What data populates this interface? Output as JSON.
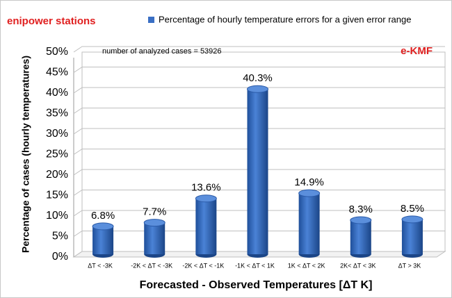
{
  "chart_data": {
    "type": "bar",
    "title": "enipower stations",
    "annotations": [
      "number of analyzed cases = 53926",
      "e-KMF"
    ],
    "ylabel": "Percentage of cases (hourly temperatures)",
    "xlabel": "Forecasted - Observed Temperatures [ΔT K]",
    "categories": [
      "ΔT < -3K",
      "-2K < ΔT < -3K",
      "-2K < ΔT < -1K",
      "-1K < ΔT < 1K",
      "1K < ΔT < 2K",
      "2K< ΔT < 3K",
      "ΔT > 3K"
    ],
    "series": [
      {
        "name": "Percentage of hourly temperature errors for a given error range",
        "color": "#3a6fc4",
        "values": [
          6.8,
          7.7,
          13.6,
          40.3,
          14.9,
          8.3,
          8.5
        ],
        "value_labels": [
          "6.8%",
          "7.7%",
          "13.6%",
          "40.3%",
          "14.9%",
          "8.3%",
          "8.5%"
        ]
      }
    ],
    "ylim": [
      0,
      50
    ],
    "yticks": [
      {
        "value": 0,
        "label": "0%"
      },
      {
        "value": 5,
        "label": "5%"
      },
      {
        "value": 10,
        "label": "10%"
      },
      {
        "value": 15,
        "label": "15%"
      },
      {
        "value": 20,
        "label": "20%"
      },
      {
        "value": 25,
        "label": "25%"
      },
      {
        "value": 30,
        "label": "30%"
      },
      {
        "value": 35,
        "label": "35%"
      },
      {
        "value": 40,
        "label": "40%"
      },
      {
        "value": 45,
        "label": "45%"
      },
      {
        "value": 50,
        "label": "50%"
      }
    ],
    "grid": true
  }
}
